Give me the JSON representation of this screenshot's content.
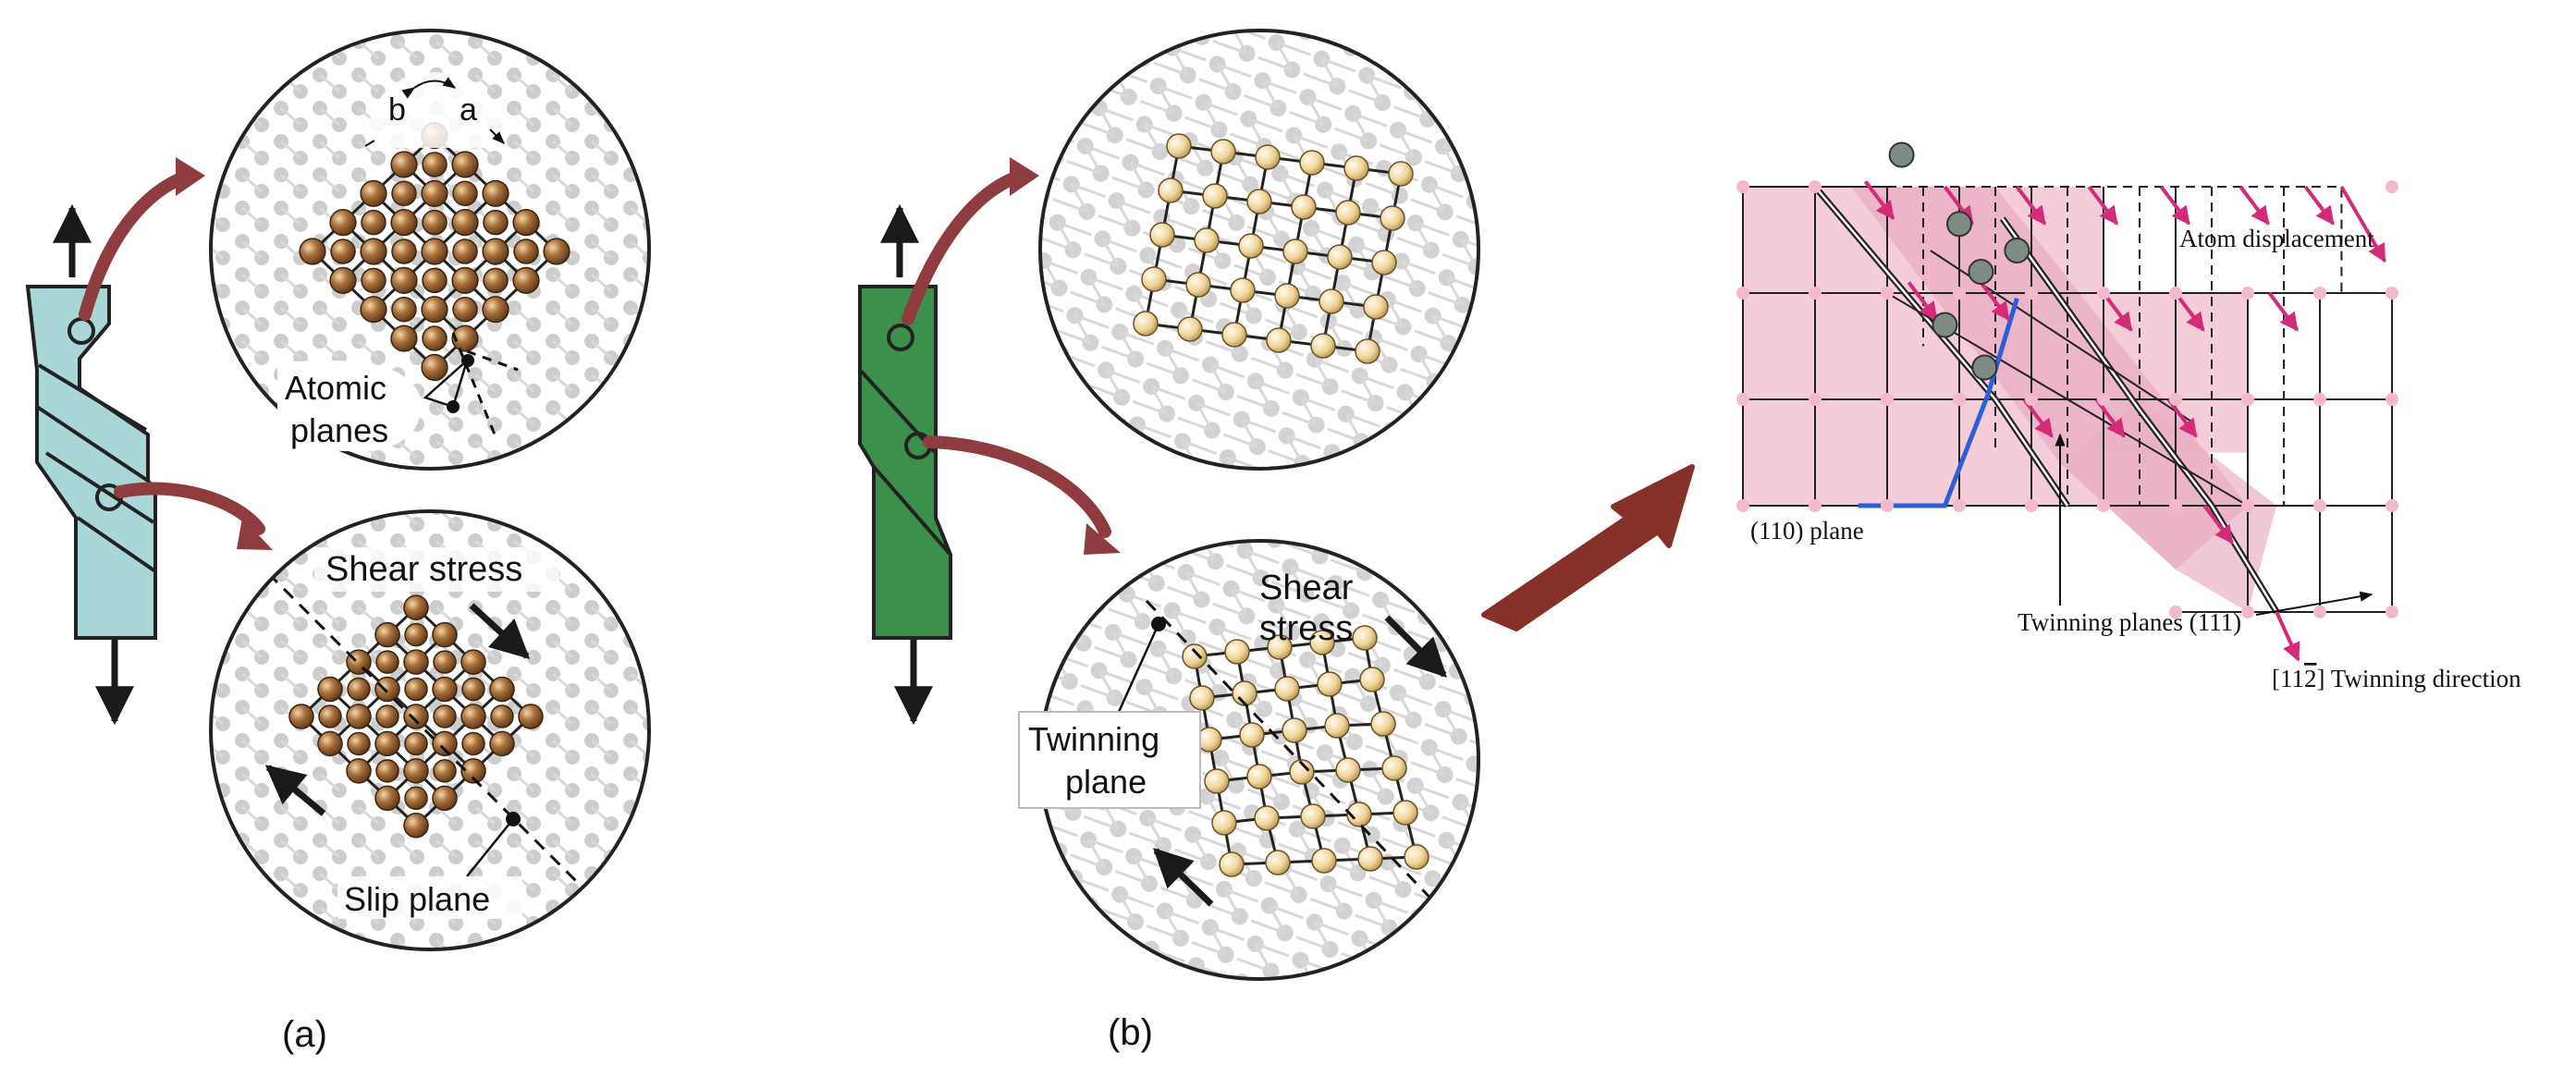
{
  "panel_a": {
    "caption": "(a)",
    "label_b": "b",
    "label_a": "a",
    "atomic_planes_line1": "Atomic",
    "atomic_planes_line2": "planes",
    "shear_stress": "Shear stress",
    "slip_plane": "Slip plane",
    "bar_color": "#a9d6d6"
  },
  "panel_b": {
    "caption": "(b)",
    "shear_line1": "Shear",
    "shear_line2": "stress",
    "twinning_line1": "Twinning",
    "twinning_line2": "plane",
    "bar_color": "#3d8f4c"
  },
  "panel_c": {
    "atom_displacement": "Atom displacement",
    "plane_110": "(110) plane",
    "twinning_planes": "Twinning planes (111)",
    "twinning_direction_pre": "[11",
    "twinning_direction_bar": "2",
    "twinning_direction_post": "] Twinning direction",
    "pink": "#f4cdd9",
    "pink_dark": "#eab0c5",
    "magenta": "#d42a7a",
    "blue": "#2a5fd8"
  },
  "colors": {
    "atom_brown": "#8a5a2e",
    "atom_cream": "#f1d9a2",
    "curved_arrow": "#8e3c40",
    "big_arrow": "#86302a"
  }
}
